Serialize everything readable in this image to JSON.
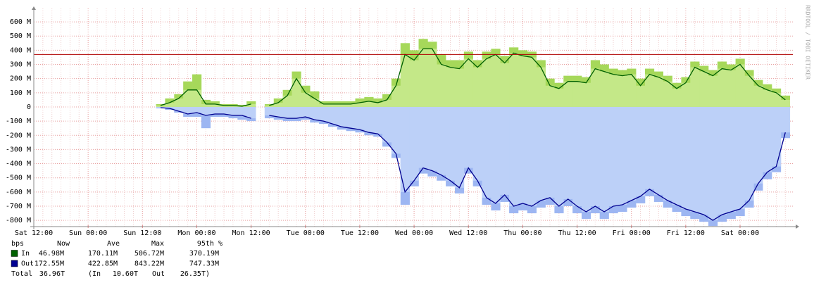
{
  "chart_data": {
    "type": "rrd-area",
    "watermark": "RRDTOOL / TOBI OETIKER",
    "ylim": [
      -844,
      655
    ],
    "yticks": [
      {
        "value": 600,
        "label": "600 M"
      },
      {
        "value": 500,
        "label": "500 M"
      },
      {
        "value": 400,
        "label": "400 M"
      },
      {
        "value": 300,
        "label": "300 M"
      },
      {
        "value": 200,
        "label": "200 M"
      },
      {
        "value": 100,
        "label": "100 M"
      },
      0,
      {
        "value": -100,
        "label": "-100 M"
      },
      {
        "value": -200,
        "label": "-200 M"
      },
      {
        "value": -300,
        "label": "-300 M"
      },
      {
        "value": -400,
        "label": "-400 M"
      },
      {
        "value": -500,
        "label": "-500 M"
      },
      {
        "value": -600,
        "label": "-600 M"
      },
      {
        "value": -700,
        "label": "-700 M"
      },
      {
        "value": -800,
        "label": "-800 M"
      }
    ],
    "grid": true,
    "categories": [
      "Sat 12:00",
      null,
      null,
      null,
      null,
      null,
      "Sun 00:00",
      null,
      null,
      null,
      null,
      null,
      "Sun 12:00",
      null,
      null,
      null,
      null,
      null,
      "Mon 00:00",
      null,
      null,
      null,
      null,
      null,
      "Mon 12:00",
      null,
      null,
      null,
      null,
      null,
      "Tue 00:00",
      null,
      null,
      null,
      null,
      null,
      "Tue 12:00",
      null,
      null,
      null,
      null,
      null,
      "Wed 00:00",
      null,
      null,
      null,
      null,
      null,
      "Wed 12:00",
      null,
      null,
      null,
      null,
      null,
      "Thu 00:00",
      null,
      null,
      null,
      null,
      null,
      "Thu 12:00",
      null,
      null,
      null,
      null,
      null,
      "Fri 00:00",
      null,
      null,
      null,
      null,
      null,
      "Fri 12:00",
      null,
      null,
      null,
      null,
      null,
      "Sat 00:00",
      null,
      null,
      null,
      null,
      null
    ],
    "threshold": 370.19,
    "threshold_color": "#b00000",
    "unit_header": "bps",
    "stat_headers": [
      "Now",
      "Ave",
      "Max",
      "95th %"
    ],
    "series": [
      {
        "name": "In",
        "color": "#006000",
        "fill": "#c4e888",
        "max_fill": "#a6d85a",
        "stats": [
          "46.98M",
          "170.11M",
          "506.72M",
          "370.19M"
        ],
        "values": [
          null,
          null,
          null,
          null,
          null,
          null,
          null,
          null,
          null,
          null,
          null,
          null,
          null,
          null,
          10,
          30,
          60,
          120,
          120,
          20,
          20,
          10,
          10,
          5,
          20,
          null,
          10,
          30,
          80,
          200,
          100,
          60,
          20,
          20,
          20,
          20,
          30,
          40,
          30,
          50,
          150,
          370,
          330,
          410,
          410,
          300,
          280,
          270,
          340,
          280,
          340,
          370,
          310,
          380,
          360,
          350,
          280,
          150,
          130,
          180,
          180,
          170,
          270,
          250,
          230,
          220,
          230,
          150,
          230,
          210,
          180,
          130,
          170,
          280,
          250,
          220,
          270,
          260,
          300,
          220,
          150,
          120,
          100,
          50
        ],
        "max_values": [
          null,
          null,
          null,
          null,
          null,
          null,
          null,
          null,
          null,
          null,
          null,
          null,
          null,
          null,
          20,
          60,
          90,
          180,
          230,
          50,
          40,
          20,
          20,
          15,
          40,
          null,
          20,
          60,
          120,
          250,
          150,
          110,
          40,
          40,
          40,
          40,
          60,
          70,
          60,
          90,
          200,
          450,
          400,
          480,
          460,
          370,
          330,
          330,
          390,
          330,
          390,
          410,
          360,
          420,
          400,
          390,
          330,
          200,
          170,
          220,
          220,
          210,
          330,
          300,
          270,
          260,
          270,
          200,
          270,
          250,
          220,
          170,
          210,
          320,
          290,
          260,
          320,
          300,
          340,
          260,
          190,
          160,
          130,
          80
        ]
      },
      {
        "name": "Out",
        "color": "#000090",
        "fill": "#bcd0f8",
        "max_fill": "#9db6f2",
        "stats": [
          "172.55M",
          "422.85M",
          "843.22M",
          "747.33M"
        ],
        "values": [
          null,
          null,
          null,
          null,
          null,
          null,
          null,
          null,
          null,
          null,
          null,
          null,
          null,
          null,
          -5,
          -10,
          -30,
          -50,
          -40,
          -60,
          -50,
          -50,
          -60,
          -60,
          -80,
          null,
          -60,
          -70,
          -80,
          -80,
          -70,
          -90,
          -100,
          -120,
          -140,
          -150,
          -160,
          -180,
          -190,
          -250,
          -330,
          -600,
          -520,
          -430,
          -450,
          -480,
          -520,
          -570,
          -430,
          -520,
          -640,
          -680,
          -620,
          -700,
          -680,
          -700,
          -660,
          -640,
          -700,
          -650,
          -700,
          -740,
          -700,
          -740,
          -700,
          -690,
          -660,
          -630,
          -580,
          -620,
          -660,
          -690,
          -720,
          -740,
          -760,
          -800,
          -760,
          -740,
          -720,
          -660,
          -540,
          -460,
          -420,
          -180
        ],
        "max_values": [
          null,
          null,
          null,
          null,
          null,
          null,
          null,
          null,
          null,
          null,
          null,
          null,
          null,
          null,
          -10,
          -20,
          -40,
          -70,
          -70,
          -150,
          -70,
          -70,
          -80,
          -90,
          -100,
          null,
          -80,
          -90,
          -100,
          -100,
          -90,
          -110,
          -120,
          -140,
          -160,
          -170,
          -180,
          -200,
          -210,
          -280,
          -360,
          -690,
          -560,
          -470,
          -490,
          -520,
          -560,
          -610,
          -470,
          -560,
          -690,
          -730,
          -670,
          -750,
          -730,
          -750,
          -710,
          -690,
          -750,
          -700,
          -750,
          -790,
          -750,
          -790,
          -750,
          -740,
          -710,
          -680,
          -630,
          -670,
          -710,
          -740,
          -770,
          -790,
          -810,
          -840,
          -810,
          -790,
          -770,
          -710,
          -590,
          -510,
          -460,
          -220
        ]
      }
    ],
    "total": [
      "Total",
      "36.96T",
      "(In",
      "10.60T",
      "Out",
      "26.35T)"
    ]
  }
}
